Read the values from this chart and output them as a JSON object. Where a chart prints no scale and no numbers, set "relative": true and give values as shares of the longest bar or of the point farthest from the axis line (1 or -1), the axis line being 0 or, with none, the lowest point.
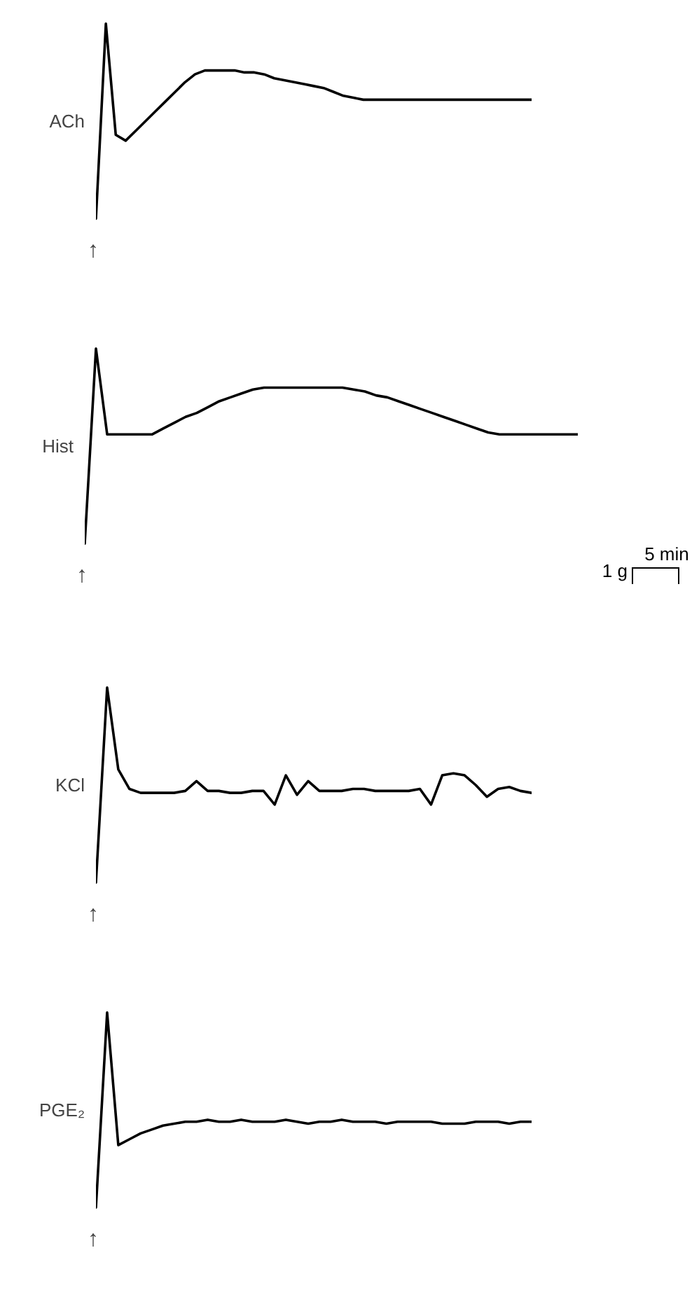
{
  "chart_data": [
    {
      "type": "line",
      "relative": true,
      "annotations": [
        "↑"
      ],
      "categories": [
        null,
        null,
        null,
        null,
        null,
        null,
        null,
        null,
        null,
        null,
        null,
        null,
        null,
        null,
        null,
        null,
        null,
        null,
        null,
        null,
        null,
        null,
        null,
        null,
        null,
        null,
        null,
        null,
        null,
        null,
        null,
        null,
        null,
        null,
        null,
        null,
        null,
        null,
        null,
        null,
        null,
        null,
        null,
        null,
        null
      ],
      "series": [
        {
          "name": "ACh",
          "color": "#000000",
          "values": [
            0,
            1,
            0.43,
            0.4,
            0.45,
            0.5,
            0.55,
            0.6,
            0.65,
            0.7,
            0.74,
            0.76,
            0.76,
            0.76,
            0.76,
            0.75,
            0.75,
            0.74,
            0.72,
            0.71,
            0.7,
            0.69,
            0.68,
            0.67,
            0.65,
            0.63,
            0.62,
            0.61,
            0.61,
            0.61,
            0.61,
            0.61,
            0.61,
            0.61,
            0.61,
            0.61,
            0.61,
            0.61,
            0.61,
            0.61,
            0.61,
            0.61,
            0.61,
            0.61,
            0.61
          ]
        }
      ]
    },
    {
      "type": "line",
      "relative": true,
      "annotations": [
        "↑",
        "5 min",
        "1 g"
      ],
      "categories": [
        null,
        null,
        null,
        null,
        null,
        null,
        null,
        null,
        null,
        null,
        null,
        null,
        null,
        null,
        null,
        null,
        null,
        null,
        null,
        null,
        null,
        null,
        null,
        null,
        null,
        null,
        null,
        null,
        null,
        null,
        null,
        null,
        null,
        null,
        null,
        null,
        null,
        null,
        null,
        null,
        null,
        null,
        null,
        null,
        null
      ],
      "series": [
        {
          "name": "Hist",
          "color": "#000000",
          "values": [
            0,
            1,
            0.56,
            0.56,
            0.56,
            0.56,
            0.56,
            0.59,
            0.62,
            0.65,
            0.67,
            0.7,
            0.73,
            0.75,
            0.77,
            0.79,
            0.8,
            0.8,
            0.8,
            0.8,
            0.8,
            0.8,
            0.8,
            0.8,
            0.79,
            0.78,
            0.76,
            0.75,
            0.73,
            0.71,
            0.69,
            0.67,
            0.65,
            0.63,
            0.61,
            0.59,
            0.57,
            0.56,
            0.56,
            0.56,
            0.56,
            0.56,
            0.56,
            0.56,
            0.56
          ]
        }
      ]
    },
    {
      "type": "line",
      "relative": true,
      "annotations": [
        "↑"
      ],
      "categories": [
        null,
        null,
        null,
        null,
        null,
        null,
        null,
        null,
        null,
        null,
        null,
        null,
        null,
        null,
        null,
        null,
        null,
        null,
        null,
        null,
        null,
        null,
        null,
        null,
        null,
        null,
        null,
        null,
        null,
        null,
        null,
        null,
        null,
        null,
        null,
        null,
        null,
        null,
        null,
        null
      ],
      "series": [
        {
          "name": "KCl",
          "color": "#000000",
          "values": [
            0,
            1,
            0.58,
            0.48,
            0.46,
            0.46,
            0.46,
            0.46,
            0.47,
            0.52,
            0.47,
            0.47,
            0.46,
            0.46,
            0.47,
            0.47,
            0.4,
            0.55,
            0.45,
            0.52,
            0.47,
            0.47,
            0.47,
            0.48,
            0.48,
            0.47,
            0.47,
            0.47,
            0.47,
            0.48,
            0.4,
            0.55,
            0.56,
            0.55,
            0.5,
            0.44,
            0.48,
            0.49,
            0.47,
            0.46
          ]
        }
      ]
    },
    {
      "type": "line",
      "relative": true,
      "annotations": [
        "↑"
      ],
      "categories": [
        null,
        null,
        null,
        null,
        null,
        null,
        null,
        null,
        null,
        null,
        null,
        null,
        null,
        null,
        null,
        null,
        null,
        null,
        null,
        null,
        null,
        null,
        null,
        null,
        null,
        null,
        null,
        null,
        null,
        null,
        null,
        null,
        null,
        null,
        null,
        null,
        null,
        null,
        null,
        null
      ],
      "series": [
        {
          "name": "PGE₂",
          "color": "#000000",
          "values": [
            0,
            1,
            0.32,
            0.35,
            0.38,
            0.4,
            0.42,
            0.43,
            0.44,
            0.44,
            0.45,
            0.44,
            0.44,
            0.45,
            0.44,
            0.44,
            0.44,
            0.45,
            0.44,
            0.43,
            0.44,
            0.44,
            0.45,
            0.44,
            0.44,
            0.44,
            0.43,
            0.44,
            0.44,
            0.44,
            0.44,
            0.43,
            0.43,
            0.43,
            0.44,
            0.44,
            0.44,
            0.43,
            0.44,
            0.44
          ]
        }
      ]
    }
  ]
}
